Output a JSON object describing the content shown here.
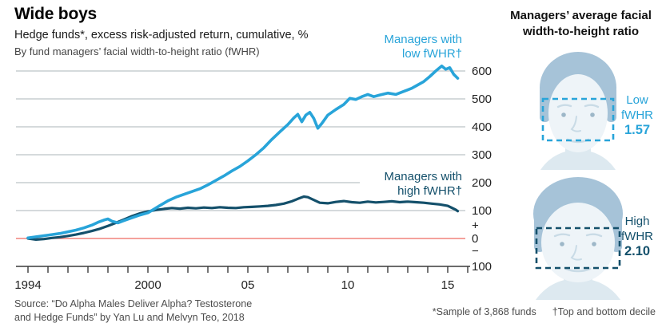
{
  "header": {
    "title": "Wide boys",
    "subtitle": "Hedge funds*, excess risk-adjusted return, cumulative, %",
    "byline": "By fund managers’ facial width-to-height ratio (fWHR)"
  },
  "chart_data": {
    "type": "line",
    "title": "Wide boys",
    "subtitle": "Hedge funds, excess risk-adjusted return, cumulative, %, by fund managers’ facial width-to-height ratio (fWHR)",
    "x_axis": {
      "min": 1994,
      "max": 2016,
      "tick_every_years": 1,
      "labels": [
        {
          "label": "1994",
          "year": 1994
        },
        {
          "label": "2000",
          "year": 2000
        },
        {
          "label": "05",
          "year": 2005
        },
        {
          "label": "10",
          "year": 2010
        },
        {
          "label": "15",
          "year": 2015
        }
      ]
    },
    "y_axis": {
      "min": -100,
      "max": 600,
      "gridline_step": 100,
      "gridlines": [
        {
          "v": 600
        },
        {
          "v": 500
        },
        {
          "v": 400
        },
        {
          "v": 300
        },
        {
          "v": 200,
          "end_year": 2010.6
        },
        {
          "v": 100
        }
      ],
      "ticks": [
        {
          "label": "600",
          "v": 600
        },
        {
          "label": "500",
          "v": 500
        },
        {
          "label": "400",
          "v": 400
        },
        {
          "label": "300",
          "v": 300
        },
        {
          "label": "200",
          "v": 200
        },
        {
          "label": "100",
          "v": 100
        },
        {
          "label": "+",
          "v": 47
        },
        {
          "label": "0",
          "v": 0
        },
        {
          "label": "−",
          "v": -44
        },
        {
          "label": "100",
          "v": -100
        }
      ]
    },
    "zero_line_value": 0,
    "legend_position": "inline-annotations",
    "grid": true,
    "series": [
      {
        "name": "Managers with high fWHR†",
        "key": "high",
        "color": "#14506b",
        "points": [
          [
            1994,
            0
          ],
          [
            1994.4,
            -4
          ],
          [
            1994.8,
            -2
          ],
          [
            1995.2,
            2
          ],
          [
            1995.6,
            5
          ],
          [
            1996,
            9
          ],
          [
            1996.4,
            14
          ],
          [
            1996.8,
            20
          ],
          [
            1997.2,
            27
          ],
          [
            1997.6,
            35
          ],
          [
            1998,
            45
          ],
          [
            1998.4,
            56
          ],
          [
            1998.8,
            68
          ],
          [
            1999.2,
            80
          ],
          [
            1999.6,
            90
          ],
          [
            2000,
            97
          ],
          [
            2000.4,
            102
          ],
          [
            2000.8,
            106
          ],
          [
            2001.2,
            109
          ],
          [
            2001.6,
            107
          ],
          [
            2002,
            110
          ],
          [
            2002.4,
            108
          ],
          [
            2002.8,
            111
          ],
          [
            2003.2,
            109
          ],
          [
            2003.6,
            112
          ],
          [
            2004,
            110
          ],
          [
            2004.4,
            109
          ],
          [
            2004.8,
            112
          ],
          [
            2005.2,
            113
          ],
          [
            2005.6,
            115
          ],
          [
            2006,
            117
          ],
          [
            2006.4,
            120
          ],
          [
            2006.8,
            125
          ],
          [
            2007.2,
            133
          ],
          [
            2007.5,
            142
          ],
          [
            2007.8,
            150
          ],
          [
            2008,
            148
          ],
          [
            2008.3,
            138
          ],
          [
            2008.6,
            128
          ],
          [
            2009,
            126
          ],
          [
            2009.4,
            131
          ],
          [
            2009.8,
            134
          ],
          [
            2010.2,
            130
          ],
          [
            2010.6,
            128
          ],
          [
            2011,
            132
          ],
          [
            2011.4,
            129
          ],
          [
            2011.8,
            131
          ],
          [
            2012.2,
            133
          ],
          [
            2012.6,
            130
          ],
          [
            2013,
            132
          ],
          [
            2013.4,
            130
          ],
          [
            2013.8,
            128
          ],
          [
            2014.2,
            125
          ],
          [
            2014.6,
            122
          ],
          [
            2015,
            117
          ],
          [
            2015.2,
            110
          ],
          [
            2015.4,
            103
          ],
          [
            2015.5,
            98
          ]
        ]
      },
      {
        "name": "Managers with low fWHR†",
        "key": "low",
        "color": "#28a4d9",
        "points": [
          [
            1994,
            2
          ],
          [
            1994.4,
            6
          ],
          [
            1994.8,
            10
          ],
          [
            1995.2,
            14
          ],
          [
            1995.6,
            18
          ],
          [
            1996,
            24
          ],
          [
            1996.4,
            30
          ],
          [
            1996.8,
            38
          ],
          [
            1997.2,
            48
          ],
          [
            1997.5,
            58
          ],
          [
            1997.8,
            66
          ],
          [
            1998,
            70
          ],
          [
            1998.2,
            62
          ],
          [
            1998.5,
            56
          ],
          [
            1998.8,
            64
          ],
          [
            1999.2,
            74
          ],
          [
            1999.6,
            84
          ],
          [
            2000,
            92
          ],
          [
            2000.3,
            105
          ],
          [
            2000.6,
            118
          ],
          [
            2001,
            135
          ],
          [
            2001.4,
            148
          ],
          [
            2001.8,
            158
          ],
          [
            2002.2,
            168
          ],
          [
            2002.6,
            178
          ],
          [
            2003,
            192
          ],
          [
            2003.4,
            208
          ],
          [
            2003.8,
            224
          ],
          [
            2004.2,
            242
          ],
          [
            2004.6,
            258
          ],
          [
            2005,
            278
          ],
          [
            2005.4,
            300
          ],
          [
            2005.8,
            325
          ],
          [
            2006.2,
            355
          ],
          [
            2006.6,
            382
          ],
          [
            2007,
            408
          ],
          [
            2007.3,
            432
          ],
          [
            2007.5,
            445
          ],
          [
            2007.7,
            418
          ],
          [
            2007.9,
            442
          ],
          [
            2008.1,
            452
          ],
          [
            2008.3,
            430
          ],
          [
            2008.5,
            395
          ],
          [
            2008.7,
            412
          ],
          [
            2009,
            442
          ],
          [
            2009.4,
            462
          ],
          [
            2009.8,
            480
          ],
          [
            2010.1,
            502
          ],
          [
            2010.4,
            498
          ],
          [
            2010.7,
            508
          ],
          [
            2011,
            516
          ],
          [
            2011.3,
            508
          ],
          [
            2011.6,
            514
          ],
          [
            2012,
            521
          ],
          [
            2012.4,
            516
          ],
          [
            2012.8,
            527
          ],
          [
            2013.2,
            538
          ],
          [
            2013.5,
            550
          ],
          [
            2013.8,
            562
          ],
          [
            2014.1,
            580
          ],
          [
            2014.4,
            600
          ],
          [
            2014.7,
            618
          ],
          [
            2014.9,
            606
          ],
          [
            2015.1,
            612
          ],
          [
            2015.3,
            588
          ],
          [
            2015.5,
            574
          ]
        ]
      }
    ],
    "annotations": [
      {
        "lines": [
          "Managers with",
          "low fWHR†"
        ],
        "series": "low"
      },
      {
        "lines": [
          "Managers with",
          "high fWHR†"
        ],
        "series": "high"
      }
    ]
  },
  "right_panel": {
    "title_lines": [
      "Managers’ average facial",
      "width-to-height ratio"
    ],
    "faces": [
      {
        "key": "low",
        "label_lines": [
          "Low",
          "fWHR"
        ],
        "value": "1.57"
      },
      {
        "key": "high",
        "label_lines": [
          "High",
          "fWHR"
        ],
        "value": "2.10"
      }
    ]
  },
  "footer": {
    "source_lines": [
      "Source: “Do Alpha Males Deliver Alpha? Testosterone",
      "and Hedge Funds” by Yan Lu and Melvyn Teo, 2018"
    ],
    "footnotes": [
      "*Sample of 3,868 funds",
      "†Top and bottom decile"
    ]
  },
  "colors": {
    "low": "#28a4d9",
    "high": "#14506b",
    "zero_line": "#f0837c",
    "grid": "#c7cdd1",
    "axis": "#3a3a3a",
    "tick_text": "#222222",
    "hair": "#a6c3d8",
    "face": "#eef4f8",
    "face_shade": "#dde9f0",
    "feature": "#c9dbe6",
    "eye": "#9db7c8"
  }
}
